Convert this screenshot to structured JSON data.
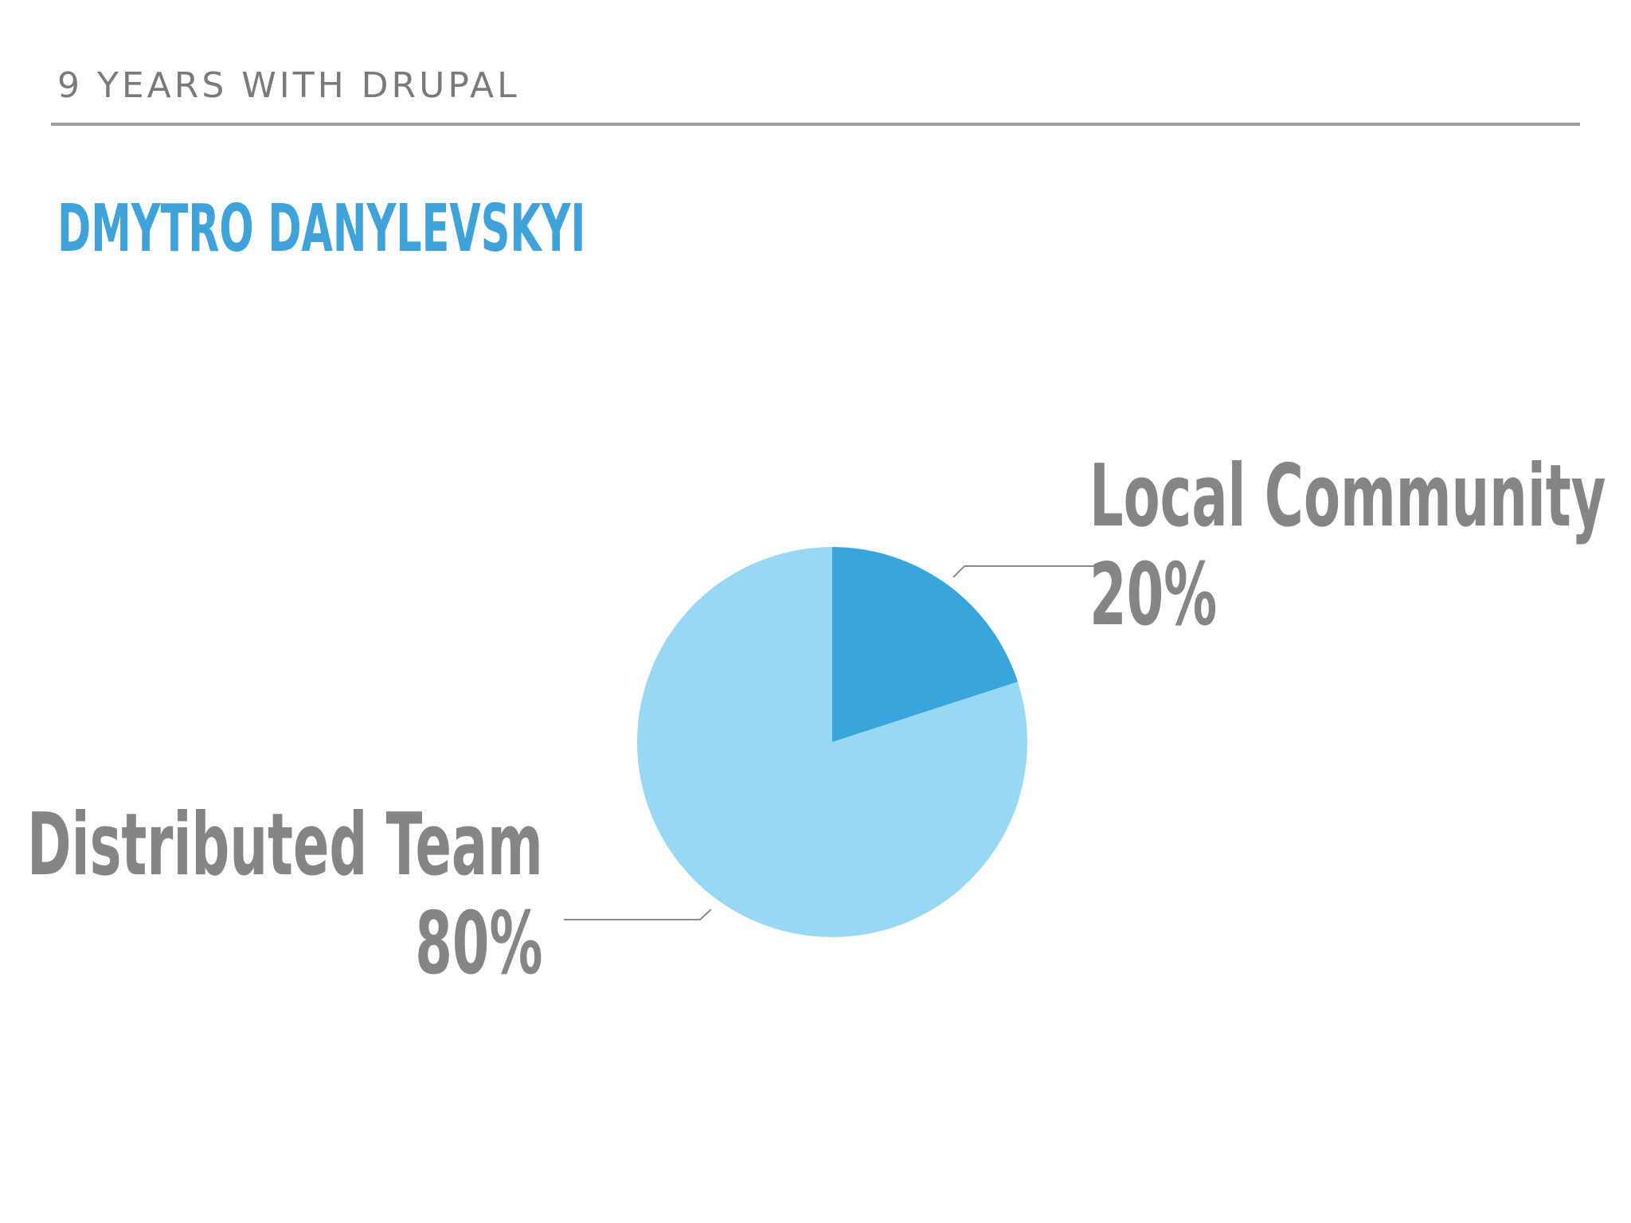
{
  "header": {
    "label": "9 YEARS WITH DRUPAL"
  },
  "title": "DMYTRO DANYLEVSKYI",
  "chart_data": {
    "type": "pie",
    "title": "",
    "slices": [
      {
        "name": "Local Community",
        "value": 20,
        "label": "20%",
        "color": "#38a6dc"
      },
      {
        "name": "Distributed Team",
        "value": 80,
        "label": "80%",
        "color": "#99d8f5"
      }
    ],
    "legend": "none",
    "leader_line_color": "#8c8c8c"
  }
}
